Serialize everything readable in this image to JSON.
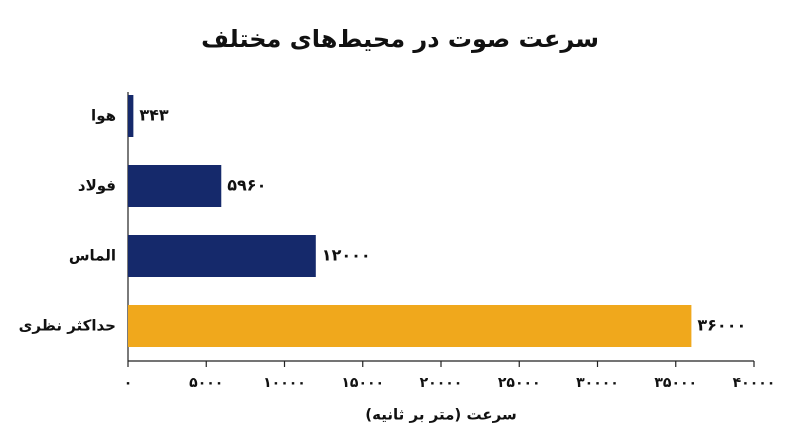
{
  "chart_data": {
    "type": "barh",
    "title": "سرعت صوت در محیط‌های مختلف",
    "x_label": "سرعت (متر بر ثانیه)",
    "categories": [
      "هوا",
      "فولاد",
      "الماس",
      "حداکثر نظری"
    ],
    "values": [
      343,
      5960,
      12000,
      36000
    ],
    "value_labels": [
      "۳۴۳",
      "۵۹۶۰",
      "۱۲۰۰۰",
      "۳۶۰۰۰"
    ],
    "colors": [
      "#15296b",
      "#15296b",
      "#15296b",
      "#f0a81c"
    ],
    "xlim": [
      0,
      40000
    ],
    "xticks": [
      {
        "value": 0,
        "label": "۰"
      },
      {
        "value": 5000,
        "label": "۵۰۰۰"
      },
      {
        "value": 10000,
        "label": "۱۰۰۰۰"
      },
      {
        "value": 15000,
        "label": "۱۵۰۰۰"
      },
      {
        "value": 20000,
        "label": "۲۰۰۰۰"
      },
      {
        "value": 25000,
        "label": "۲۵۰۰۰"
      },
      {
        "value": 30000,
        "label": "۳۰۰۰۰"
      },
      {
        "value": 35000,
        "label": "۳۵۰۰۰"
      },
      {
        "value": 40000,
        "label": "۴۰۰۰۰"
      }
    ],
    "grid": false
  }
}
